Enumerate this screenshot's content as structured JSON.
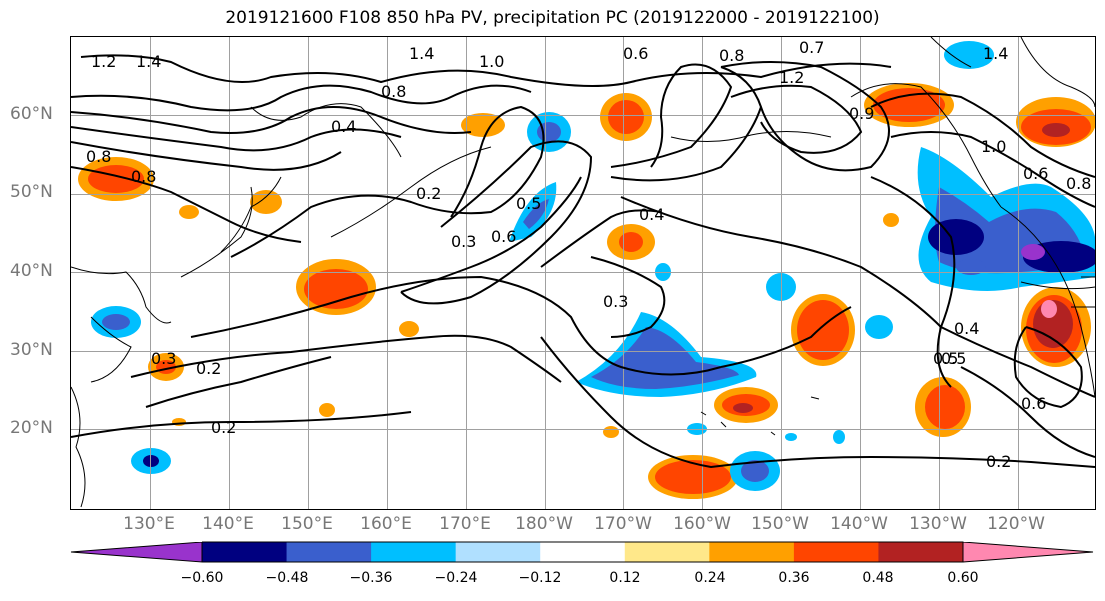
{
  "title": "2019121600 F108 850 hPa PV, precipitation PC (2019122000 - 2019122100)",
  "lat_labels": [
    "60°N",
    "50°N",
    "40°N",
    "30°N",
    "20°N"
  ],
  "lon_labels": [
    "130°E",
    "140°E",
    "150°E",
    "160°E",
    "170°E",
    "180°W",
    "170°W",
    "160°W",
    "150°W",
    "140°W",
    "130°W",
    "120°W"
  ],
  "contour_labels": [
    "1.2",
    "1.4",
    "1.4",
    "1.0",
    "0.6",
    "0.8",
    "0.7",
    "1.2",
    "0.4",
    "0.8",
    "0.8",
    "0.9",
    "1.4",
    "1.0",
    "0.6",
    "0.8",
    "0.8",
    "0.2",
    "0.3",
    "0.5",
    "0.6",
    "0.4",
    "0.3",
    "0.3",
    "0.2",
    "0.5",
    "0.2",
    "0.4",
    "0.5",
    "0.6",
    "0.2"
  ],
  "colorbar": {
    "ticks": [
      "−0.60",
      "−0.48",
      "−0.36",
      "−0.24",
      "−0.12",
      "0.12",
      "0.24",
      "0.36",
      "0.48",
      "0.60"
    ],
    "colors": [
      "#9933cc",
      "#000080",
      "#3a5fcd",
      "#00bfff",
      "#b0e0ff",
      "#ffffff",
      "#ffe88a",
      "#ffa000",
      "#ff4500",
      "#b22222",
      "#ff88b0"
    ]
  }
}
